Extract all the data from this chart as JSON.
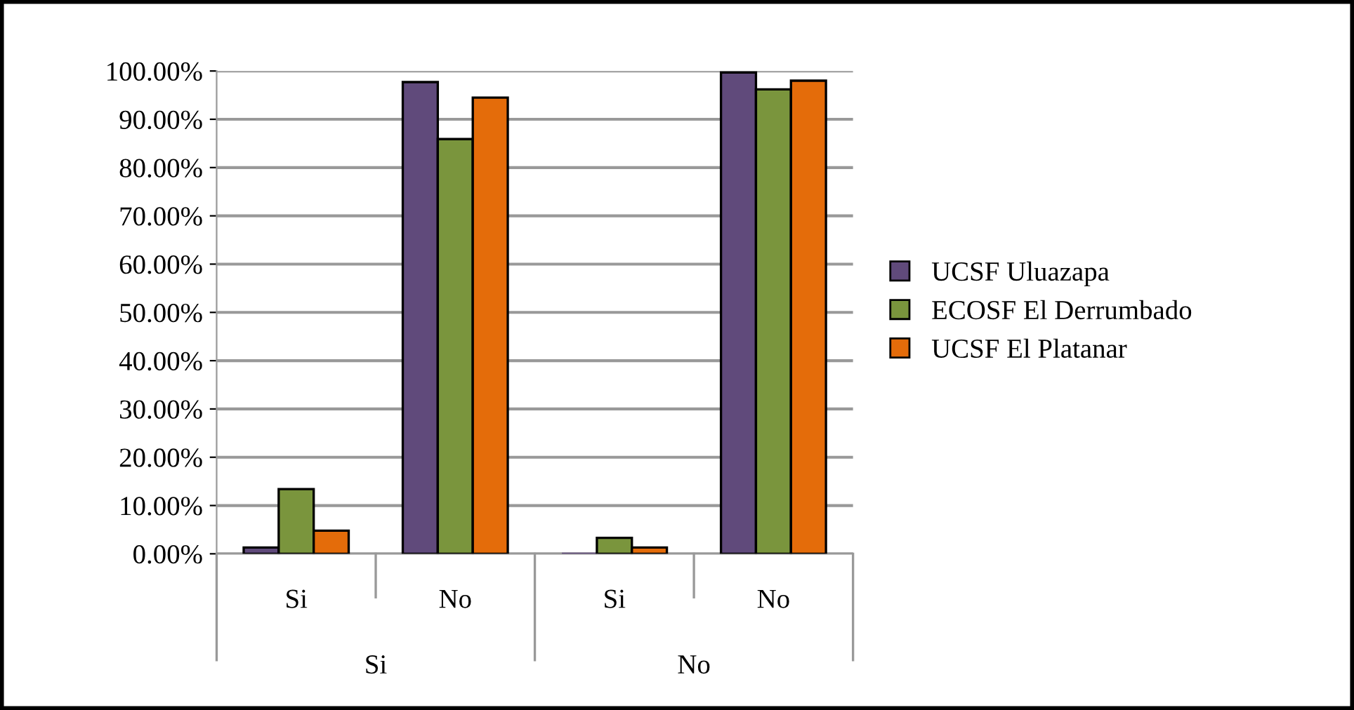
{
  "chart_data": {
    "type": "bar",
    "categories": [
      "Si",
      "No",
      "Si",
      "No"
    ],
    "series": [
      {
        "name": "UCSF Uluazapa",
        "color": "#604a7b",
        "values": [
          1.3,
          97.7,
          0,
          99.7
        ]
      },
      {
        "name": "ECOSF El Derrumbado",
        "color": "#7a953d",
        "values": [
          13.4,
          85.9,
          3.3,
          96.2
        ]
      },
      {
        "name": "UCSF El Platanar",
        "color": "#e46c0a",
        "values": [
          4.8,
          94.5,
          1.3,
          98.0
        ]
      }
    ],
    "annotations": [
      "Si",
      "No"
    ],
    "ylim": [
      0,
      100
    ],
    "yticks": [
      {
        "value": 0,
        "label": "0.00%"
      },
      {
        "value": 10,
        "label": "10.00%"
      },
      {
        "value": 20,
        "label": "20.00%"
      },
      {
        "value": 30,
        "label": "30.00%"
      },
      {
        "value": 40,
        "label": "40.00%"
      },
      {
        "value": 50,
        "label": "50.00%"
      },
      {
        "value": 60,
        "label": "60.00%"
      },
      {
        "value": 70,
        "label": "70.00%"
      },
      {
        "value": 80,
        "label": "80.00%"
      },
      {
        "value": 90,
        "label": "90.00%"
      },
      {
        "value": 100,
        "label": "100.00%"
      }
    ],
    "grid": "y",
    "legend": "right"
  }
}
